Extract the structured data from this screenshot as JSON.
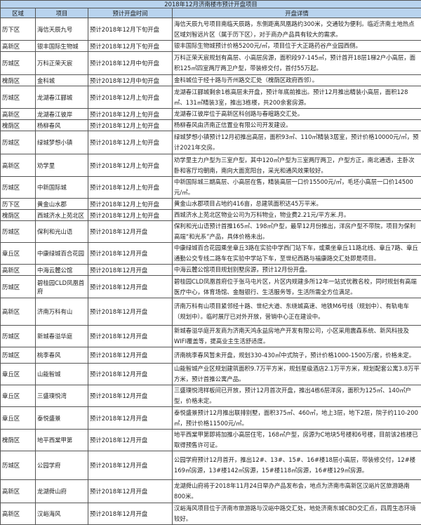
{
  "title": "2018年12月济南楼市预计开盘项目",
  "columns": [
    "区域",
    "项目",
    "预计开盘时间",
    "开盘详情"
  ],
  "rows": [
    {
      "district": "历下区",
      "project": "海信天辰九号",
      "time": "预计2018年12月下旬开盘",
      "detail": "海信天辰九号项目南临天辰路，东侧距离凤凰路约300米，交通较为便利。临近济南土地热点区域刘智远片区（属于历下区），对于商办产品具有较大的需求。"
    },
    {
      "district": "高新区",
      "project": "银丰国际生物城",
      "time": "预计2018年12月下旬开盘",
      "detail": "银丰国际生物城预计价格5200元/㎡，项目位于大正路药谷产业园西侧。"
    },
    {
      "district": "历城区",
      "project": "万科正荣天宸",
      "time": "预计2018年12月中旬开盘",
      "detail": "万科正荣天宸规划有高层、小高层房源，面积段97-145㎡，预计首开18层1梯2户小高层，面积125㎡四室两厅两卫户型，带装修交付，首付55万起。"
    },
    {
      "district": "槐荫区",
      "project": "金科城",
      "time": "预计2018年12月中旬开盘",
      "detail": "金科城位于经十路与齐州路交汇处（槐荫区政府西邻）。"
    },
    {
      "district": "历城区",
      "project": "龙湖春江郦城",
      "time": "预计2018年12月上旬开盘",
      "detail": "龙湖春江郦城剩余1栋高层未开盘，预计年底前推出。预计12月推出精装小高层，面积128㎡、131㎡精装3室，推出3栋楼，共200余套房源。"
    },
    {
      "district": "高新区",
      "project": "龙湖春江彼岸",
      "time": "预计2018年12月上旬开盘",
      "detail": "龙湖春江彼岸位于高新区科创路与春暄路交汇处。"
    },
    {
      "district": "槐荫区",
      "project": "杨柳春风",
      "time": "预计2018年12月上旬开盘",
      "detail": "杨柳春风由济南正信置业有限公司开发建设。"
    },
    {
      "district": "历城区",
      "project": "绿城梦想小镇",
      "time": "预计2018年12月上旬开盘",
      "detail": "绿城梦想小镇预计12月初推出高层，面积93㎡、110㎡精装3居室，预计价格10000元/㎡，预计2021年交房。"
    },
    {
      "district": "高新区",
      "project": "劝学里",
      "time": "预计2018年12月上旬开盘",
      "detail": "劝学里主力户型为三室户型，其中120㎡户型为三室两厅两卫，户型方正，南北通透，主卧次卧和客厅均朝南，南向大面宽阳台，采光和通风效果较好。"
    },
    {
      "district": "历城区",
      "project": "中新国际城",
      "time": "预计2018年12月上旬开盘",
      "detail": "中新国际城三期高层、小高层在售，精装高层一口价15500元/㎡，毛坯小高层一口价14500元/㎡。"
    },
    {
      "district": "历下区",
      "project": "黄金山水郡",
      "time": "预计2018年12月上旬开盘",
      "detail": "黄金山水郡项目占地约416亩，总建筑面积达45万平米。"
    },
    {
      "district": "槐荫区",
      "project": "西城济水上苑北区",
      "time": "预计2018年12月上旬开盘",
      "detail": "西城济水上苑北区物业公司为万科物业，物业费2.21元/平方米.月。"
    },
    {
      "district": "历城区",
      "project": "保利和光山语",
      "time": "预计2018年12月开盘",
      "detail": "保利和光山语预计首推165㎡、198㎡户型，最早12月份推出，洋房户型不带院，项目为保利高端“和光系”产品，具体价格未出。"
    },
    {
      "district": "章丘区",
      "project": "中康绿城百合花园",
      "time": "预计2018年12月开盘",
      "detail": "中康绿城百合花园乘坐章丘3路在实验中学西门站下车，或乘坐章丘11路北线、章丘7路、章丘通勤公交专线二路车在实验中学站下车，至世纪西路与福康路交汇处即是项目。"
    },
    {
      "district": "高新区",
      "project": "中海云麓公馆",
      "time": "预计2018年12月开盘",
      "detail": "中海云麓公馆项目规划别墅房源，预计12月份开盘。"
    },
    {
      "district": "历城区",
      "project": "碧桂园CLD凤凰首府",
      "time": "预计2018年12月开盘",
      "detail": "碧桂园CLD凤凰首府位于张马屯片区，片区内规建多所12年一站式优教名校，同时规划有高端医疗中心，体育场馆、金融银行、生活服务等，生活所需全方位满足。"
    },
    {
      "district": "高新区",
      "project": "济南万科有山",
      "time": "预计2018年12月开盘",
      "detail": "济南万科有山项目紧邻经十路、世纪大道、东绕城高速、地铁M6号线（规划中）、有轨电车（规划中）。临时展厅已对外开放，营销中心正在建设中。"
    },
    {
      "district": "历城区",
      "project": "新城春溢华庭",
      "time": "预计2018年12月开盘",
      "detail": "新城春溢华庭开发商为济南天鸿永益房地产开发有限公司，小区采用震森系统、新风科技及WIFI覆盖等，提高业主生活舒适度。"
    },
    {
      "district": "历城区",
      "project": "桃李春风",
      "time": "预计2018年12月开盘",
      "detail": "济南桃李春风暂未开盘，规划330-430㎡中式院子，预计价格1000-1500万/套，价格未定。"
    },
    {
      "district": "章丘区",
      "project": "山能智城",
      "time": "预计2018年12月开盘",
      "detail": "山能智城产业区规划建筑面积9.7万平方米，规划星级酒店2.1万平方米，规划配套公寓3.8万平方米，预计首推公寓产品。"
    },
    {
      "district": "章丘区",
      "project": "三盛璞悦湾",
      "time": "预计2018年12月开盘",
      "detail": "三盛璞悦湾样板间已开放，预计12月首次开盘，推出4栋6层洋房，面积为125㎡、140㎡户型，价格未定。"
    },
    {
      "district": "章丘区",
      "project": "泰悦盛景",
      "time": "预计2018年12月开盘",
      "detail": "泰悦盛景预计12月推出联排别墅，面积375㎡、460㎡，地上3层，地下2层，院子约110-200㎡，预计价格11500元/㎡。"
    },
    {
      "district": "槐荫区",
      "project": "地平西棠甲第",
      "time": "预计2018年12月开盘",
      "detail": "地平西棠甲第即将加推小高层住宅，168㎡户型，房源为C地块5号楼和6号楼，目前该2栋楼已取得预售许可证。"
    },
    {
      "district": "历城区",
      "project": "公园学府",
      "time": "预计2018年12月开盘",
      "detail": "公园学府预计12月首开，推出12#、13#、15#、16#楼18层小高层，带装修交付，12#楼169㎡房源，13#楼142㎡房源，15#楼118㎡房源，16#楼129㎡房源。"
    },
    {
      "district": "高新区",
      "project": "龙湖舜山府",
      "time": "预计2018年12月开盘",
      "detail": "龙湖舜山府将于2018年11月24日举办产品发布会，地点为济南市高新区汉峪片区旅游路南800米。"
    },
    {
      "district": "高新区",
      "project": "汉峪海风",
      "time": "预计2018年12月开盘",
      "detail": "汉峪海风项目位于济南市旅游路与汉峪中路交汇处，地处济南东城CBD交汇点，四周生态环境较好。"
    }
  ]
}
